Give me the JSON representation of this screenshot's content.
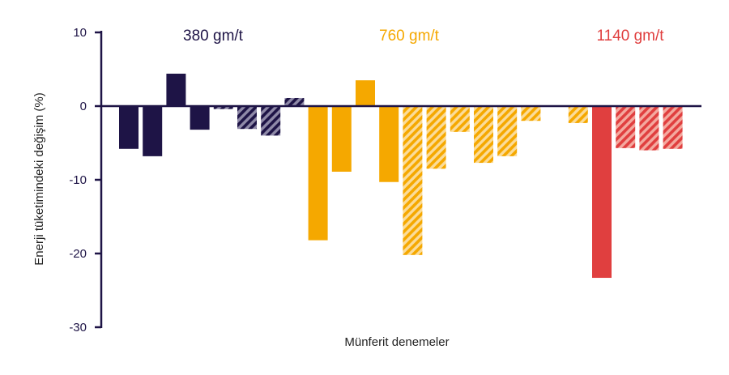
{
  "chart_data": {
    "type": "bar",
    "title": "",
    "xlabel": "Münferit denemeler",
    "ylabel": "Enerji tüketimindeki değişim (%)",
    "ylim": [
      -30,
      10
    ],
    "yticks": [
      "10",
      "0",
      "-10",
      "-20",
      "-30"
    ],
    "ytick_values": [
      10,
      0,
      -10,
      -20,
      -30
    ],
    "grid": false,
    "colors": {
      "380": "#1e1446",
      "760": "#f5a800",
      "1140": "#e03f3f"
    },
    "groups": [
      {
        "name": "380 gm/t",
        "color": "#1e1446"
      },
      {
        "name": "760 gm/t",
        "color": "#f5a800"
      },
      {
        "name": "1140 gm/t",
        "color": "#e03f3f"
      }
    ],
    "bars": [
      {
        "group": 0,
        "hatched": false,
        "value": -5.8
      },
      {
        "group": 0,
        "hatched": false,
        "value": -6.8
      },
      {
        "group": 0,
        "hatched": false,
        "value": 4.4
      },
      {
        "group": 0,
        "hatched": false,
        "value": -3.2
      },
      {
        "group": 0,
        "hatched": true,
        "value": -0.4
      },
      {
        "group": 0,
        "hatched": true,
        "value": -3.1
      },
      {
        "group": 0,
        "hatched": true,
        "value": -4.0
      },
      {
        "group": 0,
        "hatched": true,
        "value": 1.1
      },
      {
        "group": 1,
        "hatched": false,
        "value": -18.2
      },
      {
        "group": 1,
        "hatched": false,
        "value": -8.9
      },
      {
        "group": 1,
        "hatched": false,
        "value": 3.5
      },
      {
        "group": 1,
        "hatched": false,
        "value": -10.3
      },
      {
        "group": 1,
        "hatched": true,
        "value": -20.2
      },
      {
        "group": 1,
        "hatched": true,
        "value": -8.5
      },
      {
        "group": 1,
        "hatched": true,
        "value": -3.5
      },
      {
        "group": 1,
        "hatched": true,
        "value": -7.7
      },
      {
        "group": 1,
        "hatched": true,
        "value": -6.8
      },
      {
        "group": 1,
        "hatched": true,
        "value": -2.0
      },
      null,
      {
        "group": 1,
        "hatched": true,
        "value": -2.3
      },
      {
        "group": 2,
        "hatched": false,
        "value": -23.3
      },
      {
        "group": 2,
        "hatched": true,
        "value": -5.7
      },
      {
        "group": 2,
        "hatched": true,
        "value": -6.0
      },
      {
        "group": 2,
        "hatched": true,
        "value": -5.8
      }
    ]
  }
}
